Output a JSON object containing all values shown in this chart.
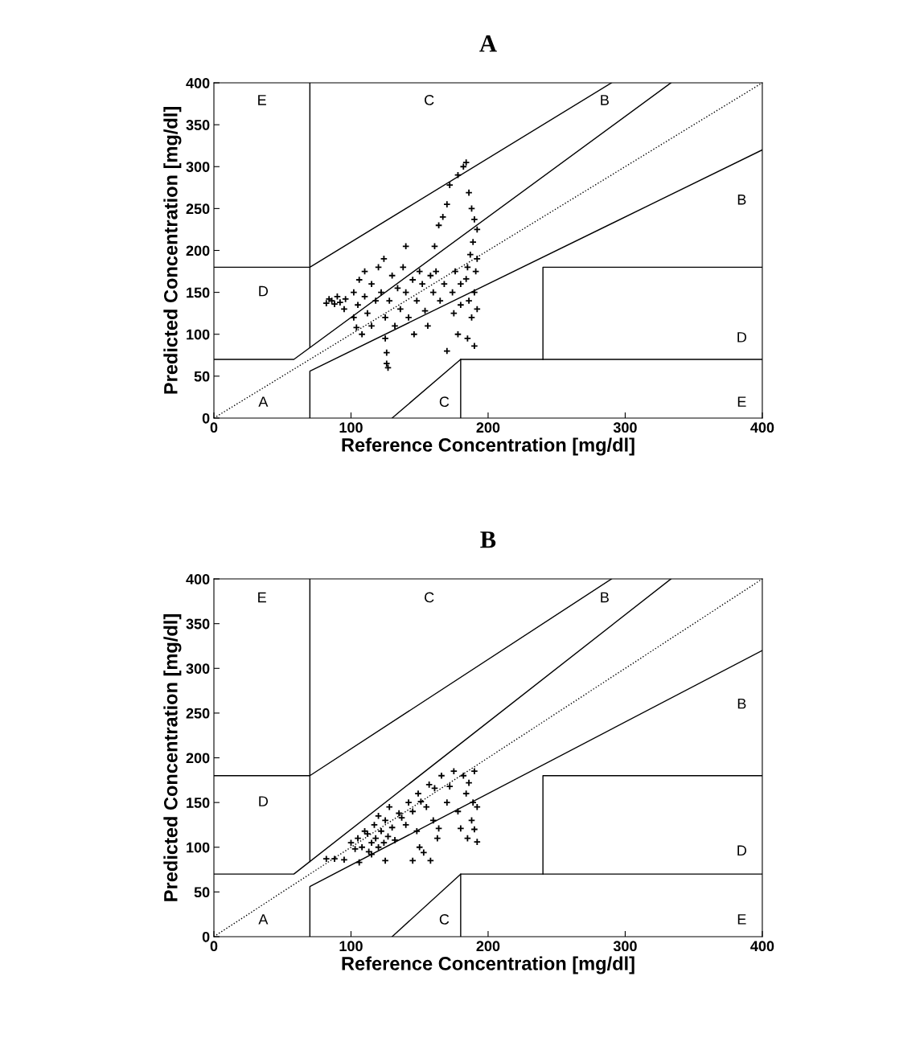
{
  "chart_data": [
    {
      "type": "scatter",
      "title": "A",
      "xlabel": "Reference Concentration [mg/dl]",
      "ylabel": "Predicted Concentration [mg/dl]",
      "xlim": [
        0,
        400
      ],
      "ylim": [
        0,
        400
      ],
      "xticks": [
        0,
        100,
        200,
        300,
        400
      ],
      "yticks": [
        0,
        50,
        100,
        150,
        200,
        250,
        300,
        350,
        400
      ],
      "series": [
        {
          "type": "line",
          "color": "#000000",
          "line_style": "dotted",
          "marker": "none",
          "x": [
            0,
            400
          ],
          "values": [
            0,
            400
          ]
        },
        {
          "type": "line",
          "color": "#000000",
          "line_style": "solid",
          "marker": "none",
          "x": [
            0,
            58.33,
            333.33
          ],
          "values": [
            70,
            70,
            400
          ]
        },
        {
          "type": "line",
          "color": "#000000",
          "line_style": "solid",
          "marker": "none",
          "x": [
            70,
            70
          ],
          "values": [
            84,
            400
          ]
        },
        {
          "type": "line",
          "color": "#000000",
          "line_style": "solid",
          "marker": "none",
          "x": [
            0,
            70,
            290
          ],
          "values": [
            180,
            180,
            400
          ]
        },
        {
          "type": "line",
          "color": "#000000",
          "line_style": "solid",
          "marker": "none",
          "x": [
            70,
            70,
            400
          ],
          "values": [
            0,
            56,
            320
          ]
        },
        {
          "type": "line",
          "color": "#000000",
          "line_style": "solid",
          "marker": "none",
          "x": [
            180,
            180,
            400
          ],
          "values": [
            0,
            70,
            70
          ]
        },
        {
          "type": "line",
          "color": "#000000",
          "line_style": "solid",
          "marker": "none",
          "x": [
            240,
            240,
            400
          ],
          "values": [
            70,
            180,
            180
          ]
        },
        {
          "type": "line",
          "color": "#000000",
          "line_style": "solid",
          "marker": "none",
          "x": [
            130,
            180
          ],
          "values": [
            0,
            70
          ]
        },
        {
          "color": "#000000",
          "marker": "cross",
          "x": [
            82,
            84,
            86,
            88,
            90,
            92,
            95,
            96,
            102,
            102,
            104,
            105,
            106,
            108,
            110,
            110,
            112,
            115,
            115,
            118,
            120,
            122,
            124,
            125,
            125,
            126,
            126,
            127,
            128,
            130,
            132,
            134,
            136,
            138,
            140,
            140,
            142,
            145,
            146,
            148,
            150,
            152,
            154,
            156,
            158,
            160,
            161,
            162,
            164,
            165,
            167,
            168,
            170,
            170,
            172,
            174,
            175,
            176,
            178,
            180,
            180,
            182,
            184,
            184,
            185,
            186,
            186,
            187,
            188,
            188,
            189,
            190,
            190,
            190,
            191,
            192,
            192,
            192,
            185,
            178
          ],
          "values": [
            137,
            142,
            140,
            136,
            145,
            138,
            130,
            142,
            120,
            150,
            108,
            135,
            165,
            100,
            145,
            175,
            125,
            160,
            110,
            140,
            180,
            150,
            190,
            120,
            95,
            78,
            65,
            60,
            140,
            170,
            110,
            155,
            130,
            180,
            205,
            150,
            120,
            165,
            100,
            140,
            175,
            160,
            128,
            110,
            170,
            150,
            205,
            175,
            230,
            140,
            240,
            160,
            80,
            255,
            278,
            150,
            125,
            175,
            290,
            160,
            135,
            300,
            305,
            166,
            180,
            269,
            140,
            195,
            250,
            120,
            210,
            237,
            150,
            86,
            175,
            190,
            225,
            130,
            95,
            100
          ]
        }
      ],
      "annotations": [
        "E",
        "C",
        "B",
        "B",
        "D",
        "D",
        "A",
        "C",
        "E"
      ]
    },
    {
      "type": "scatter",
      "title": "B",
      "xlabel": "Reference Concentration [mg/dl]",
      "ylabel": "Predicted Concentration [mg/dl]",
      "xlim": [
        0,
        400
      ],
      "ylim": [
        0,
        400
      ],
      "xticks": [
        0,
        100,
        200,
        300,
        400
      ],
      "yticks": [
        0,
        50,
        100,
        150,
        200,
        250,
        300,
        350,
        400
      ],
      "series": [
        {
          "type": "line",
          "color": "#000000",
          "line_style": "dotted",
          "marker": "none",
          "x": [
            0,
            400
          ],
          "values": [
            0,
            400
          ]
        },
        {
          "type": "line",
          "color": "#000000",
          "line_style": "solid",
          "marker": "none",
          "x": [
            0,
            58.33,
            333.33
          ],
          "values": [
            70,
            70,
            400
          ]
        },
        {
          "type": "line",
          "color": "#000000",
          "line_style": "solid",
          "marker": "none",
          "x": [
            70,
            70
          ],
          "values": [
            84,
            400
          ]
        },
        {
          "type": "line",
          "color": "#000000",
          "line_style": "solid",
          "marker": "none",
          "x": [
            0,
            70,
            290
          ],
          "values": [
            180,
            180,
            400
          ]
        },
        {
          "type": "line",
          "color": "#000000",
          "line_style": "solid",
          "marker": "none",
          "x": [
            70,
            70,
            400
          ],
          "values": [
            0,
            56,
            320
          ]
        },
        {
          "type": "line",
          "color": "#000000",
          "line_style": "solid",
          "marker": "none",
          "x": [
            180,
            180,
            400
          ],
          "values": [
            0,
            70,
            70
          ]
        },
        {
          "type": "line",
          "color": "#000000",
          "line_style": "solid",
          "marker": "none",
          "x": [
            240,
            240,
            400
          ],
          "values": [
            70,
            180,
            180
          ]
        },
        {
          "type": "line",
          "color": "#000000",
          "line_style": "solid",
          "marker": "none",
          "x": [
            130,
            180
          ],
          "values": [
            0,
            70
          ]
        },
        {
          "color": "#000000",
          "marker": "cross",
          "x": [
            82,
            88,
            95,
            100,
            103,
            105,
            106,
            108,
            110,
            112,
            113,
            115,
            115,
            117,
            118,
            120,
            120,
            122,
            124,
            125,
            125,
            127,
            128,
            130,
            132,
            135,
            137,
            140,
            142,
            145,
            145,
            148,
            149,
            150,
            151,
            153,
            155,
            157,
            160,
            161,
            158,
            163,
            164,
            166,
            170,
            172,
            175,
            178,
            180,
            182,
            184,
            186,
            188,
            190,
            192,
            192,
            190,
            189,
            185
          ],
          "values": [
            87,
            87,
            86,
            105,
            98,
            110,
            83,
            100,
            118,
            115,
            95,
            105,
            92,
            125,
            110,
            100,
            135,
            118,
            105,
            130,
            85,
            112,
            145,
            122,
            108,
            138,
            133,
            125,
            150,
            85,
            140,
            118,
            160,
            100,
            151,
            94,
            145,
            170,
            130,
            166,
            85,
            110,
            121,
            180,
            150,
            168,
            185,
            140,
            121,
            180,
            160,
            172,
            130,
            185,
            145,
            106,
            120,
            150,
            110
          ]
        }
      ],
      "annotations": [
        "E",
        "C",
        "B",
        "B",
        "D",
        "D",
        "A",
        "C",
        "E"
      ]
    }
  ]
}
